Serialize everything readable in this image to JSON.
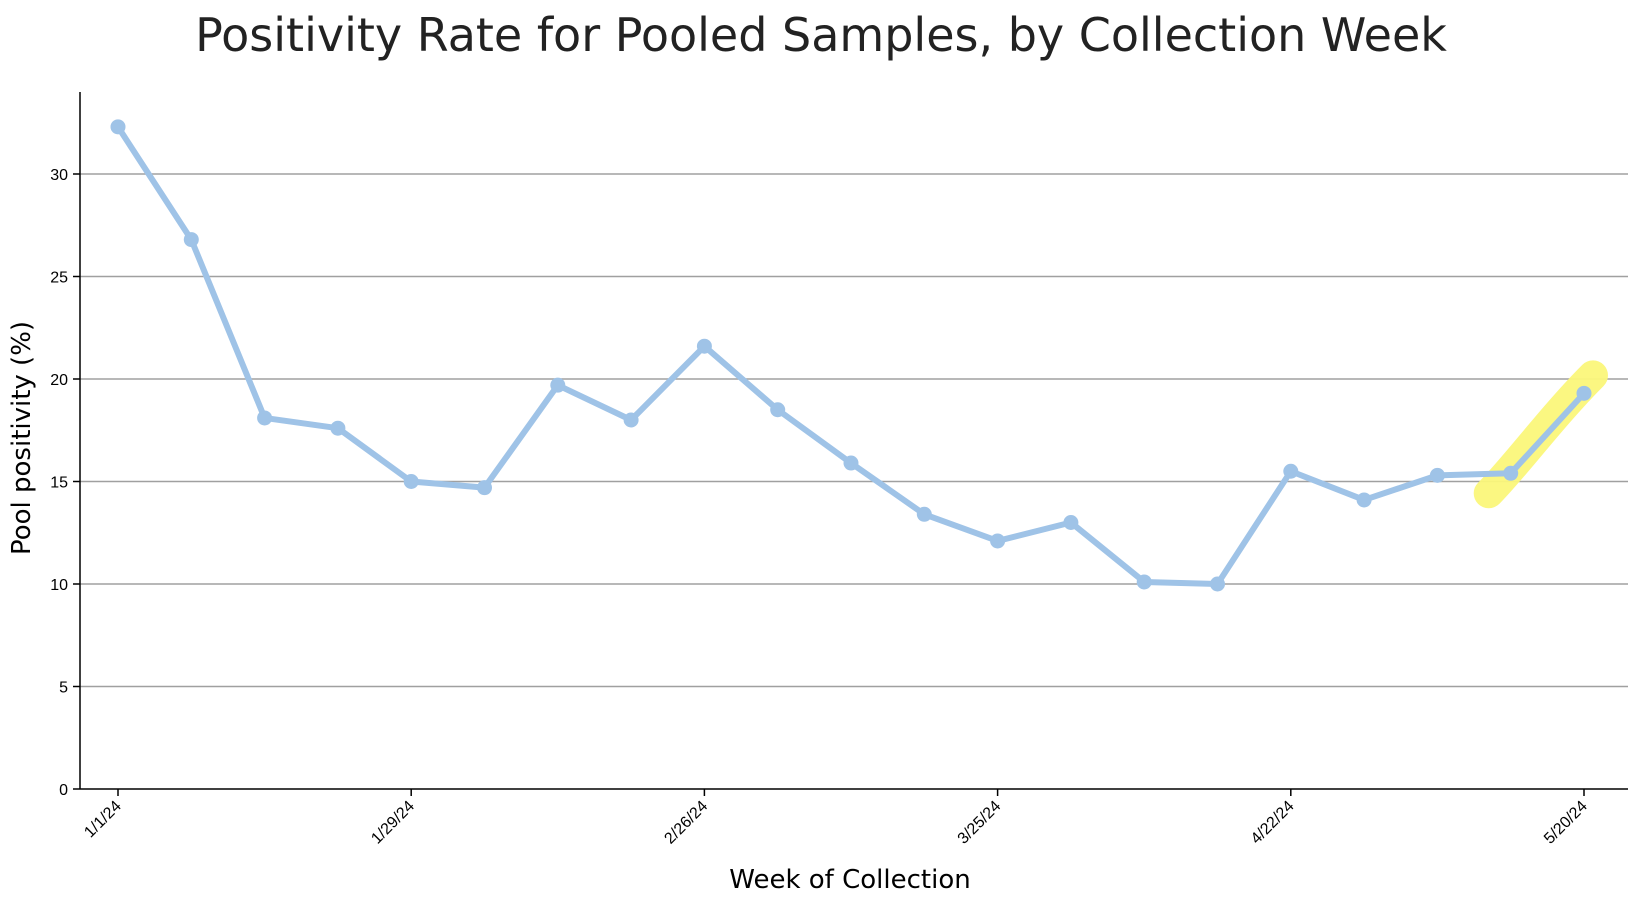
{
  "chart_data": {
    "type": "line",
    "title": "Positivity Rate for Pooled Samples, by Collection Week",
    "xlabel": "Week of Collection",
    "ylabel": "Pool positivity (%)",
    "ylim": [
      0,
      34
    ],
    "yticks": [
      0,
      5,
      10,
      15,
      20,
      25,
      30
    ],
    "grid": "horizontal",
    "legend": "none",
    "x_tick_labels": [
      "1/1/24",
      "1/29/24",
      "2/26/24",
      "3/25/24",
      "4/22/24",
      "5/20/24"
    ],
    "x_tick_index": [
      0,
      4,
      8,
      12,
      16,
      20
    ],
    "x": [
      "1/1/24",
      "1/8/24",
      "1/15/24",
      "1/22/24",
      "1/29/24",
      "2/5/24",
      "2/12/24",
      "2/19/24",
      "2/26/24",
      "3/4/24",
      "3/11/24",
      "3/18/24",
      "3/25/24",
      "4/1/24",
      "4/8/24",
      "4/15/24",
      "4/22/24",
      "4/29/24",
      "5/6/24",
      "5/13/24",
      "5/20/24"
    ],
    "series": [
      {
        "values": [
          32.3,
          26.8,
          18.1,
          17.6,
          15.0,
          14.7,
          19.7,
          18.0,
          21.6,
          18.5,
          15.9,
          13.4,
          12.1,
          13.0,
          10.1,
          10.0,
          15.5,
          14.1,
          15.3,
          15.4,
          19.3
        ],
        "color": "#9fc3e7"
      }
    ],
    "highlight": {
      "from_index": 19,
      "to_index": 20,
      "color": "#fbf77a"
    }
  }
}
